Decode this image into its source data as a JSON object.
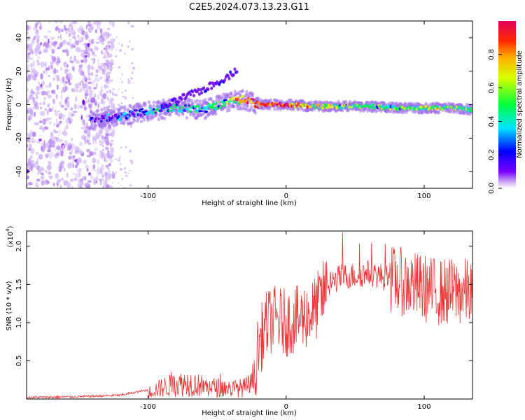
{
  "title": "C2E5.2024.073.13.23.G11",
  "chart_data": [
    {
      "type": "heatmap",
      "xlabel": "Height of straight line (km)",
      "ylabel": "Frequency (Hz)",
      "xlim": [
        -188,
        135
      ],
      "ylim": [
        -50,
        50
      ],
      "xticks": [
        -100,
        0,
        100
      ],
      "yticks": [
        -40,
        -20,
        0,
        20,
        40
      ],
      "colorbar": {
        "label": "Normalized spectral amplitude",
        "range": [
          0.0,
          1.0
        ],
        "ticks": [
          "0.0",
          "0.2",
          "0.4",
          "0.6",
          "0.8"
        ],
        "colors": [
          "#ffffff",
          "#b98cf2",
          "#6a00ff",
          "#0000ff",
          "#00e5ff",
          "#00ff3c",
          "#d9ff00",
          "#ffb000",
          "#ff2a00",
          "#e0005a"
        ]
      },
      "ridge": {
        "x": [
          -140,
          -120,
          -100,
          -80,
          -60,
          -40,
          -30,
          -20,
          0,
          20,
          40,
          60,
          80,
          100,
          120,
          135
        ],
        "frequency": [
          -9,
          -7,
          -4,
          -2,
          -3,
          2,
          3,
          0,
          0,
          -1,
          -1,
          -1,
          -2,
          -2,
          -2,
          -3
        ],
        "amplitude": [
          0.25,
          0.3,
          0.4,
          0.45,
          0.4,
          0.55,
          0.85,
          0.9,
          0.9,
          0.65,
          0.55,
          0.5,
          0.55,
          0.6,
          0.6,
          0.55
        ]
      },
      "upper_branch": {
        "x": [
          -90,
          -75,
          -60,
          -50,
          -40,
          -35
        ],
        "frequency": [
          -2,
          4,
          9,
          13,
          18,
          22
        ]
      },
      "noise_region": {
        "x": [
          -188,
          -135
        ],
        "frequency": [
          -50,
          50
        ]
      }
    },
    {
      "type": "line",
      "xlabel": "Height of straight line (km)",
      "ylabel": "SNR (10 * v/v)",
      "yscale_label": "(x10",
      "yscale_exp": "4",
      "xlim": [
        -188,
        135
      ],
      "ylim": [
        0,
        2.2
      ],
      "xticks": [
        -100,
        0,
        100
      ],
      "yticks": [
        "0.5",
        "1.0",
        "1.5",
        "2.0"
      ],
      "color": "#ee3333",
      "envelope": {
        "x": [
          -188,
          -150,
          -120,
          -100,
          -90,
          -80,
          -70,
          -60,
          -50,
          -40,
          -30,
          -25,
          -22,
          -20,
          -15,
          -10,
          0,
          10,
          20,
          25,
          30,
          40,
          50,
          60,
          70,
          80,
          90,
          100,
          110,
          120,
          135
        ],
        "snr": [
          0.02,
          0.03,
          0.05,
          0.12,
          0.2,
          0.25,
          0.28,
          0.22,
          0.2,
          0.18,
          0.2,
          0.25,
          0.45,
          0.7,
          0.95,
          1.05,
          1.0,
          1.05,
          1.15,
          1.3,
          1.5,
          1.6,
          1.62,
          1.65,
          1.6,
          1.55,
          1.5,
          1.45,
          1.4,
          1.4,
          1.4
        ]
      }
    }
  ],
  "tick_labels": {
    "x": [
      "-100",
      "0",
      "100"
    ],
    "y_top": [
      "-40",
      "-20",
      "0",
      "20",
      "40"
    ]
  }
}
